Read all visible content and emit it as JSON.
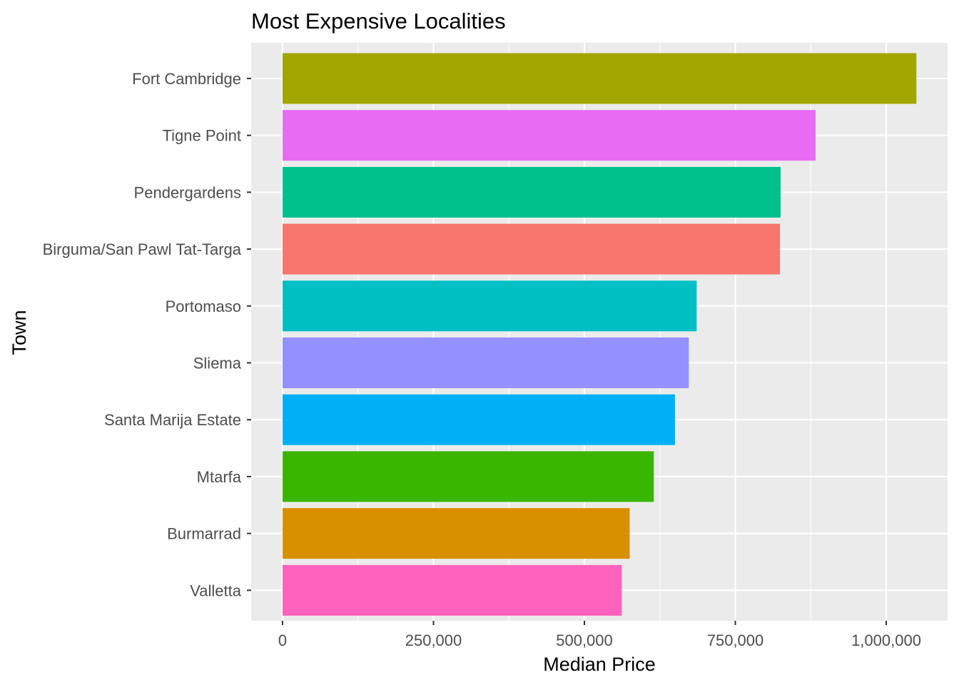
{
  "chart_data": {
    "type": "bar",
    "orientation": "horizontal",
    "title": "Most Expensive Localities",
    "xlabel": "Median Price",
    "ylabel": "Town",
    "xlim": [
      -26000,
      1100000
    ],
    "x_ticks": [
      0,
      250000,
      500000,
      750000,
      1000000
    ],
    "x_tick_labels": [
      "0",
      "250,000",
      "500,000",
      "750,000",
      "1,000,000"
    ],
    "grid": true,
    "legend": "none",
    "categories": [
      "Fort Cambridge",
      "Tigne Point",
      "Pendergardens",
      "Birguma/San Pawl Tat-Targa",
      "Portomaso",
      "Sliema",
      "Santa Marija Estate",
      "Mtarfa",
      "Burmarrad",
      "Valletta"
    ],
    "values": [
      1050000,
      883000,
      825000,
      824000,
      686000,
      673000,
      650000,
      615000,
      575000,
      562000
    ],
    "colors": [
      "#A3A500",
      "#E76BF3",
      "#00C08B",
      "#F8766D",
      "#00BFC4",
      "#9590FF",
      "#00B0F6",
      "#39B600",
      "#D89000",
      "#FF62BC"
    ]
  }
}
